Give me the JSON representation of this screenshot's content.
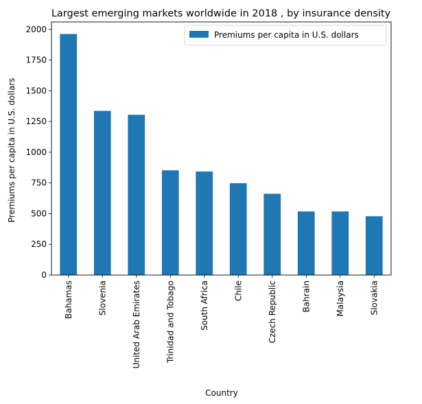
{
  "chart_data": {
    "type": "bar",
    "title": "Largest emerging markets worldwide in 2018 , by insurance density",
    "xlabel": "Country",
    "ylabel": "Premiums per capita in U.S. dollars",
    "categories": [
      "Bahamas",
      "Slovenia",
      "United Arab Emirates",
      "Trinidad and Tobago",
      "South Africa",
      "Chile",
      "Czech Republic",
      "Bahrain",
      "Malaysia",
      "Slovakia"
    ],
    "series": [
      {
        "name": "Premiums per capita in U.S. dollars",
        "values": [
          1963,
          1337,
          1305,
          853,
          843,
          748,
          662,
          518,
          518,
          479
        ],
        "color": "#1f77b4"
      }
    ],
    "yticks": [
      0,
      250,
      500,
      750,
      1000,
      1250,
      1500,
      1750,
      2000
    ],
    "ylim": [
      0,
      2061
    ],
    "grid": false,
    "legend_position": "top-right"
  }
}
